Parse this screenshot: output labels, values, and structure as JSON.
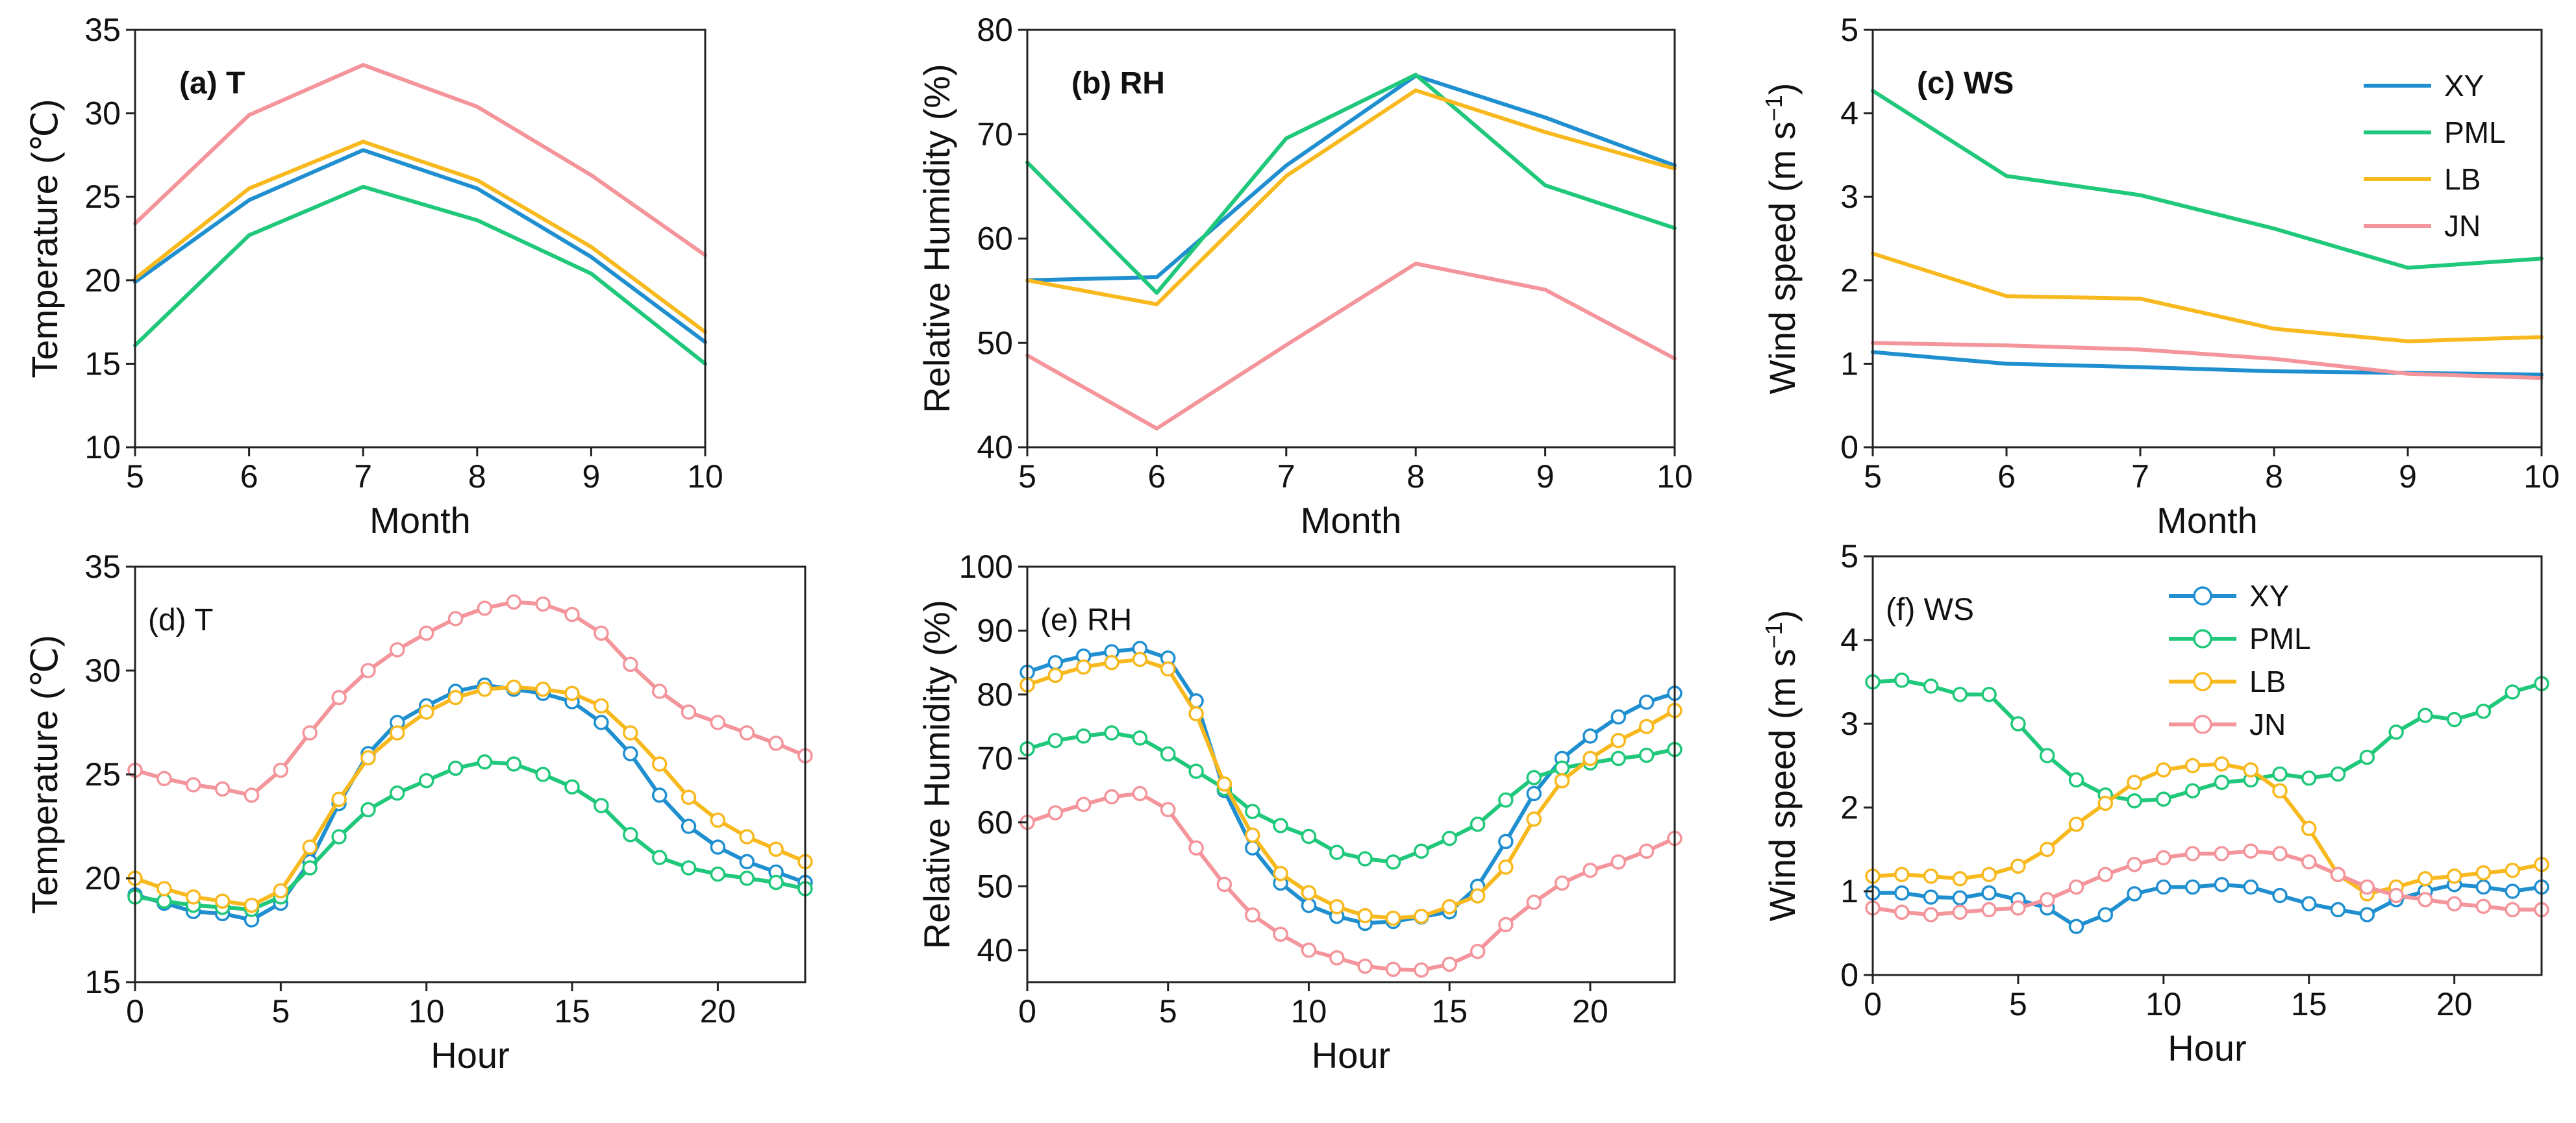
{
  "colors": {
    "XY": "#1f8fd0",
    "PML": "#1fc87a",
    "LB": "#f8b91e",
    "JN": "#f4949b"
  },
  "chart_data": [
    {
      "id": "a",
      "type": "line",
      "panel_label": "(a)",
      "title": "T",
      "xlabel": "Month",
      "ylabel": "Temperature (℃)",
      "xlim": [
        5,
        10
      ],
      "ylim": [
        10,
        35
      ],
      "xticks": [
        5,
        6,
        7,
        8,
        9,
        10
      ],
      "yticks": [
        10,
        15,
        20,
        25,
        30,
        35
      ],
      "x": [
        5,
        6,
        7,
        8,
        9,
        10
      ],
      "markers": false,
      "legend": false,
      "series": [
        {
          "name": "XY",
          "values": [
            19.9,
            24.8,
            27.8,
            25.5,
            21.4,
            16.3
          ]
        },
        {
          "name": "PML",
          "values": [
            16.1,
            22.7,
            25.6,
            23.6,
            20.4,
            15.0
          ]
        },
        {
          "name": "LB",
          "values": [
            20.1,
            25.5,
            28.3,
            26.0,
            22.0,
            16.9
          ]
        },
        {
          "name": "JN",
          "values": [
            23.4,
            29.9,
            32.9,
            30.4,
            26.3,
            21.5
          ]
        }
      ]
    },
    {
      "id": "b",
      "type": "line",
      "panel_label": "(b)",
      "title": "RH",
      "xlabel": "Month",
      "ylabel": "Relative Humidity (%)",
      "xlim": [
        5,
        10
      ],
      "ylim": [
        40,
        80
      ],
      "xticks": [
        5,
        6,
        7,
        8,
        9,
        10
      ],
      "yticks": [
        40,
        50,
        60,
        70,
        80
      ],
      "x": [
        5,
        6,
        7,
        8,
        9,
        10
      ],
      "markers": false,
      "legend": false,
      "series": [
        {
          "name": "XY",
          "values": [
            56.0,
            56.3,
            67.0,
            75.6,
            71.6,
            67.0
          ]
        },
        {
          "name": "PML",
          "values": [
            67.3,
            54.8,
            69.6,
            75.7,
            65.1,
            61.0
          ]
        },
        {
          "name": "LB",
          "values": [
            56.0,
            53.7,
            66.0,
            74.2,
            70.2,
            66.7
          ]
        },
        {
          "name": "JN",
          "values": [
            48.8,
            41.8,
            49.8,
            57.6,
            55.1,
            48.5
          ]
        }
      ]
    },
    {
      "id": "c",
      "type": "line",
      "panel_label": "(c)",
      "title": "WS",
      "xlabel": "Month",
      "ylabel": "Wind speed (m s",
      "ylabel_sup": "−1",
      "ylabel_end": ")",
      "xlim": [
        5,
        10
      ],
      "ylim": [
        0,
        5
      ],
      "xticks": [
        5,
        6,
        7,
        8,
        9,
        10
      ],
      "yticks": [
        0,
        1,
        2,
        3,
        4,
        5
      ],
      "x": [
        5,
        6,
        7,
        8,
        9,
        10
      ],
      "markers": false,
      "legend": true,
      "legend_position": "top-right",
      "series": [
        {
          "name": "XY",
          "values": [
            1.14,
            1.0,
            0.96,
            0.91,
            0.89,
            0.87
          ]
        },
        {
          "name": "PML",
          "values": [
            4.27,
            3.25,
            3.02,
            2.62,
            2.15,
            2.26
          ]
        },
        {
          "name": "LB",
          "values": [
            2.32,
            1.81,
            1.78,
            1.42,
            1.27,
            1.32
          ]
        },
        {
          "name": "JN",
          "values": [
            1.25,
            1.22,
            1.17,
            1.06,
            0.88,
            0.83
          ]
        }
      ]
    },
    {
      "id": "d",
      "type": "line",
      "panel_label": "(d)",
      "title": "T",
      "xlabel": "Hour",
      "ylabel": "Temperature (℃)",
      "xlim": [
        0,
        23
      ],
      "ylim": [
        15,
        35
      ],
      "xticks": [
        0,
        5,
        10,
        15,
        20
      ],
      "yticks": [
        15,
        20,
        25,
        30,
        35
      ],
      "x": [
        0,
        1,
        2,
        3,
        4,
        5,
        6,
        7,
        8,
        9,
        10,
        11,
        12,
        13,
        14,
        15,
        16,
        17,
        18,
        19,
        20,
        21,
        22,
        23
      ],
      "markers": true,
      "legend": false,
      "series": [
        {
          "name": "XY",
          "values": [
            19.2,
            18.8,
            18.4,
            18.3,
            18.0,
            18.8,
            20.8,
            23.6,
            26.0,
            27.5,
            28.3,
            29.0,
            29.3,
            29.1,
            28.9,
            28.5,
            27.5,
            26.0,
            24.0,
            22.5,
            21.5,
            20.8,
            20.3,
            19.8
          ]
        },
        {
          "name": "PML",
          "values": [
            19.1,
            18.9,
            18.7,
            18.6,
            18.5,
            19.1,
            20.5,
            22.0,
            23.3,
            24.1,
            24.7,
            25.3,
            25.6,
            25.5,
            25.0,
            24.4,
            23.5,
            22.1,
            21.0,
            20.5,
            20.2,
            20.0,
            19.8,
            19.5
          ]
        },
        {
          "name": "LB",
          "values": [
            20.0,
            19.5,
            19.1,
            18.9,
            18.7,
            19.4,
            21.5,
            23.8,
            25.8,
            27.0,
            28.0,
            28.7,
            29.1,
            29.2,
            29.1,
            28.9,
            28.3,
            27.0,
            25.5,
            23.9,
            22.8,
            22.0,
            21.4,
            20.8
          ]
        },
        {
          "name": "JN",
          "values": [
            25.2,
            24.8,
            24.5,
            24.3,
            24.0,
            25.2,
            27.0,
            28.7,
            30.0,
            31.0,
            31.8,
            32.5,
            33.0,
            33.3,
            33.2,
            32.7,
            31.8,
            30.3,
            29.0,
            28.0,
            27.5,
            27.0,
            26.5,
            25.9
          ]
        }
      ]
    },
    {
      "id": "e",
      "type": "line",
      "panel_label": "(e)",
      "title": "RH",
      "xlabel": "Hour",
      "ylabel": "Relative Humidity (%)",
      "xlim": [
        0,
        23
      ],
      "ylim": [
        35,
        100
      ],
      "xticks": [
        0,
        5,
        10,
        15,
        20
      ],
      "yticks": [
        40,
        50,
        60,
        70,
        80,
        90,
        100
      ],
      "x": [
        0,
        1,
        2,
        3,
        4,
        5,
        6,
        7,
        8,
        9,
        10,
        11,
        12,
        13,
        14,
        15,
        16,
        17,
        18,
        19,
        20,
        21,
        22,
        23
      ],
      "markers": true,
      "legend": false,
      "series": [
        {
          "name": "XY",
          "values": [
            83.5,
            85.0,
            86.0,
            86.7,
            87.2,
            85.7,
            79.0,
            65.0,
            56.0,
            50.5,
            47.0,
            45.3,
            44.2,
            44.5,
            45.2,
            46.0,
            50.0,
            57.0,
            64.5,
            70.0,
            73.5,
            76.5,
            78.8,
            80.2
          ]
        },
        {
          "name": "PML",
          "values": [
            71.5,
            72.8,
            73.5,
            74.0,
            73.2,
            70.7,
            68.0,
            65.3,
            61.7,
            59.5,
            57.8,
            55.3,
            54.3,
            53.8,
            55.5,
            57.5,
            59.7,
            63.5,
            67.0,
            68.5,
            69.3,
            70.0,
            70.5,
            71.4
          ]
        },
        {
          "name": "LB",
          "values": [
            81.5,
            83.0,
            84.3,
            85.0,
            85.5,
            84.0,
            77.0,
            66.0,
            58.0,
            52.0,
            49.0,
            46.8,
            45.4,
            45.0,
            45.3,
            46.8,
            48.5,
            53.0,
            60.5,
            66.5,
            70.0,
            72.8,
            75.0,
            77.5
          ]
        },
        {
          "name": "JN",
          "values": [
            60.0,
            61.5,
            62.8,
            64.0,
            64.5,
            62.0,
            56.0,
            50.3,
            45.5,
            42.5,
            40.0,
            38.8,
            37.5,
            37.0,
            36.9,
            37.8,
            39.8,
            44.0,
            47.5,
            50.5,
            52.5,
            53.8,
            55.5,
            57.5
          ]
        }
      ]
    },
    {
      "id": "f",
      "type": "line",
      "panel_label": "(f)",
      "title": "WS",
      "xlabel": "Hour",
      "ylabel": "Wind speed (m s",
      "ylabel_sup": "−1",
      "ylabel_end": ")",
      "xlim": [
        0,
        23
      ],
      "ylim": [
        0,
        5
      ],
      "xticks": [
        0,
        5,
        10,
        15,
        20
      ],
      "yticks": [
        0,
        1,
        2,
        3,
        4,
        5
      ],
      "x": [
        0,
        1,
        2,
        3,
        4,
        5,
        6,
        7,
        8,
        9,
        10,
        11,
        12,
        13,
        14,
        15,
        16,
        17,
        18,
        19,
        20,
        21,
        22,
        23
      ],
      "markers": true,
      "legend": true,
      "legend_position": "top-center",
      "series": [
        {
          "name": "XY",
          "values": [
            0.98,
            0.98,
            0.93,
            0.92,
            0.98,
            0.9,
            0.8,
            0.58,
            0.72,
            0.97,
            1.05,
            1.05,
            1.08,
            1.05,
            0.95,
            0.85,
            0.78,
            0.72,
            0.9,
            1.0,
            1.08,
            1.05,
            1.0,
            1.05
          ]
        },
        {
          "name": "PML",
          "values": [
            3.5,
            3.52,
            3.45,
            3.35,
            3.35,
            3.0,
            2.62,
            2.33,
            2.15,
            2.08,
            2.1,
            2.2,
            2.3,
            2.33,
            2.4,
            2.35,
            2.4,
            2.6,
            2.9,
            3.1,
            3.05,
            3.15,
            3.38,
            3.48
          ]
        },
        {
          "name": "LB",
          "values": [
            1.18,
            1.2,
            1.18,
            1.15,
            1.2,
            1.3,
            1.5,
            1.8,
            2.05,
            2.3,
            2.45,
            2.5,
            2.52,
            2.45,
            2.2,
            1.75,
            1.2,
            0.97,
            1.05,
            1.15,
            1.18,
            1.22,
            1.25,
            1.32
          ]
        },
        {
          "name": "JN",
          "values": [
            0.8,
            0.75,
            0.72,
            0.75,
            0.78,
            0.8,
            0.9,
            1.05,
            1.2,
            1.32,
            1.4,
            1.45,
            1.45,
            1.48,
            1.45,
            1.35,
            1.2,
            1.05,
            0.95,
            0.9,
            0.85,
            0.82,
            0.78,
            0.78
          ]
        }
      ]
    }
  ]
}
